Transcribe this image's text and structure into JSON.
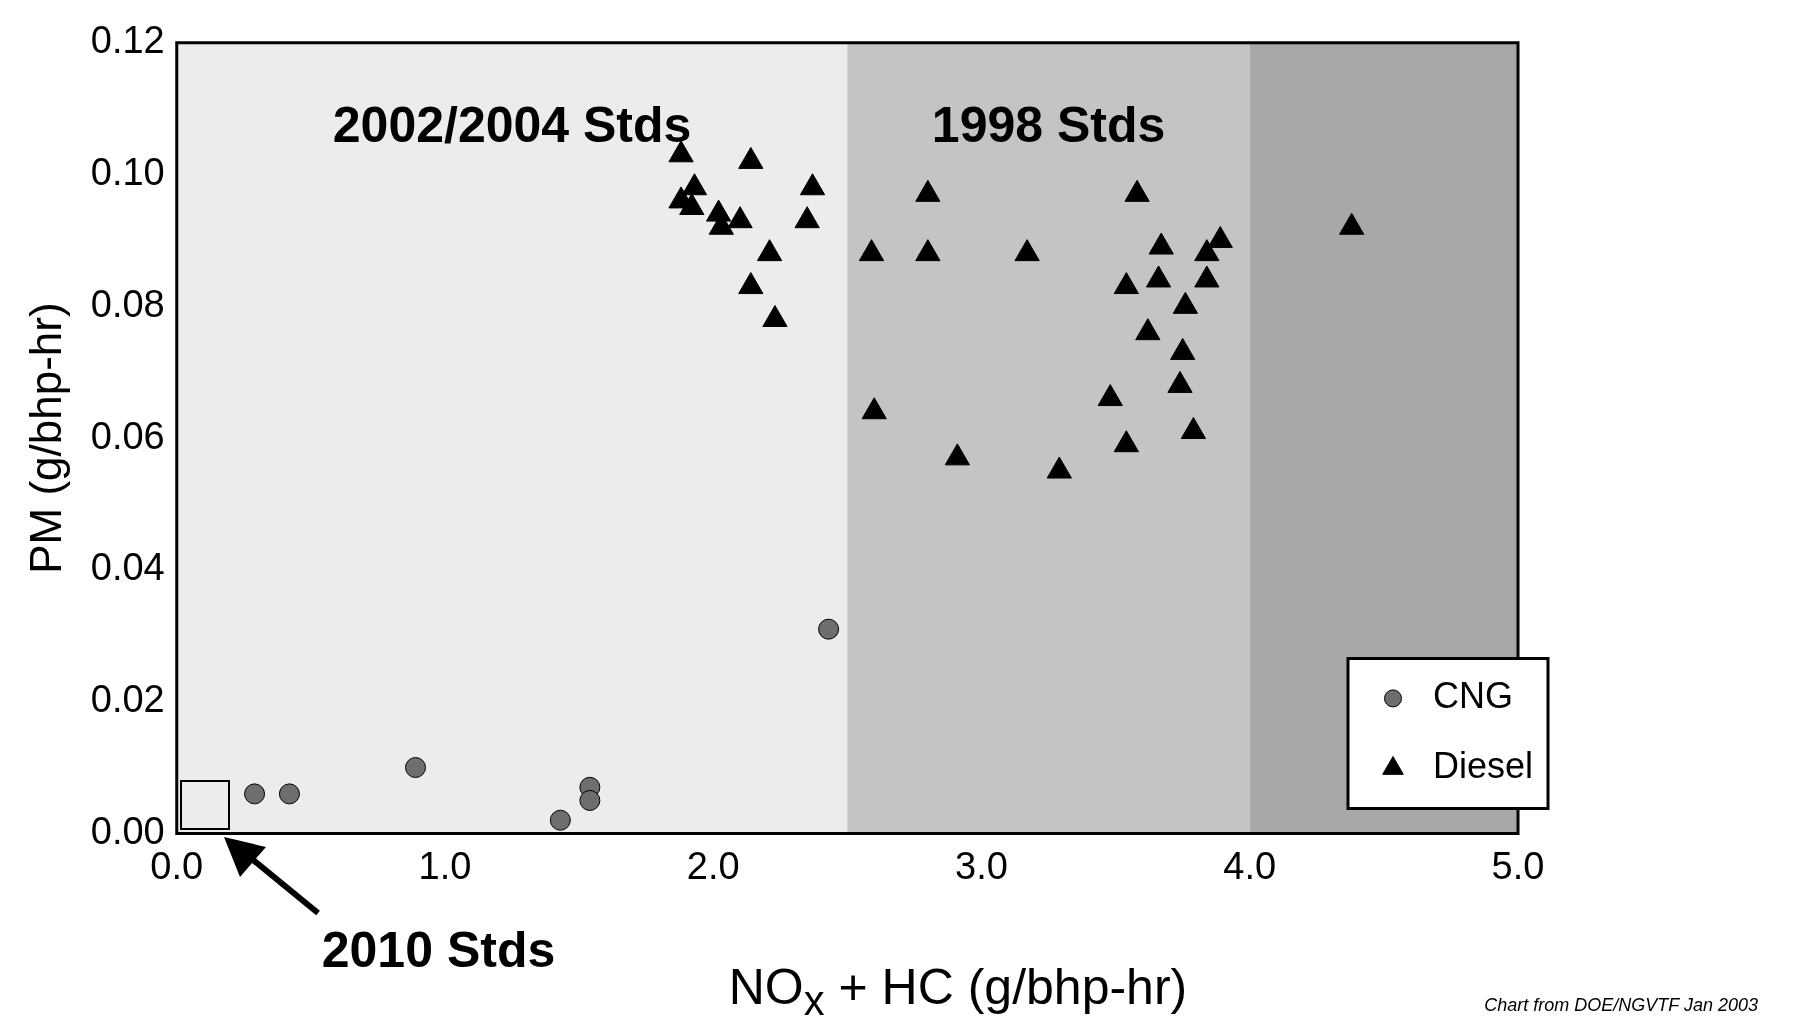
{
  "chart_data": {
    "type": "scatter",
    "xlabel": "NO$_{x}$ + HC (g/bhp-hr)",
    "ylabel": "PM (g/bhp-hr)",
    "xlim": [
      0,
      5
    ],
    "xticks": [
      {
        "value": 0,
        "label": "0.0"
      },
      {
        "value": 1,
        "label": "1.0"
      },
      {
        "value": 2,
        "label": "2.0"
      },
      {
        "value": 3,
        "label": "3.0"
      },
      {
        "value": 4,
        "label": "4.0"
      },
      {
        "value": 5,
        "label": "5.0"
      }
    ],
    "ylim": [
      0,
      0.12
    ],
    "yticks": [
      {
        "value": 0,
        "label": "0.00"
      },
      {
        "value": 0.02,
        "label": "0.02"
      },
      {
        "value": 0.04,
        "label": "0.04"
      },
      {
        "value": 0.06,
        "label": "0.06"
      },
      {
        "value": 0.08,
        "label": "0.08"
      },
      {
        "value": 0.1,
        "label": "0.10"
      },
      {
        "value": 0.12,
        "label": "0.12"
      }
    ],
    "grid": false,
    "legend": "bottom right",
    "series": [
      {
        "name": "CNG",
        "color": "#6e6e6e",
        "marker": "circle",
        "x": [
          0.29,
          0.42,
          0.89,
          1.43,
          1.54,
          1.54,
          2.43
        ],
        "values": [
          0.006,
          0.006,
          0.01,
          0.002,
          0.007,
          0.005,
          0.031
        ]
      },
      {
        "name": "Diesel",
        "color": "#000000",
        "marker": "triangle",
        "x": [
          1.88,
          2.14,
          1.88,
          1.93,
          1.92,
          2.02,
          2.03,
          2.1,
          2.37,
          2.35,
          2.21,
          2.14,
          2.23,
          2.59,
          2.8,
          2.8,
          3.17,
          3.58,
          3.67,
          3.54,
          3.66,
          3.84,
          3.89,
          3.84,
          3.76,
          3.62,
          3.75,
          3.74,
          3.48,
          2.6,
          3.79,
          3.54,
          2.91,
          3.29,
          4.38
        ],
        "values": [
          0.103,
          0.102,
          0.096,
          0.098,
          0.095,
          0.094,
          0.092,
          0.093,
          0.098,
          0.093,
          0.088,
          0.083,
          0.078,
          0.088,
          0.097,
          0.088,
          0.088,
          0.097,
          0.089,
          0.083,
          0.084,
          0.088,
          0.09,
          0.084,
          0.08,
          0.076,
          0.073,
          0.068,
          0.066,
          0.064,
          0.061,
          0.059,
          0.057,
          0.055,
          0.092
        ]
      }
    ],
    "bands": [
      {
        "axis": "x",
        "from": 0,
        "to": 2.5,
        "label": "2002/2004 Stds",
        "color": "#ececec"
      },
      {
        "axis": "x",
        "from": 2.5,
        "to": 4,
        "label": "1998 Stds",
        "color": "#c4c4c4"
      },
      {
        "axis": "x",
        "from": 4,
        "to": 5,
        "color": "#a8a8a8"
      }
    ],
    "annotations": [
      "2010 Stds",
      "Chart from DOE/NGVTF Jan 2003"
    ]
  }
}
